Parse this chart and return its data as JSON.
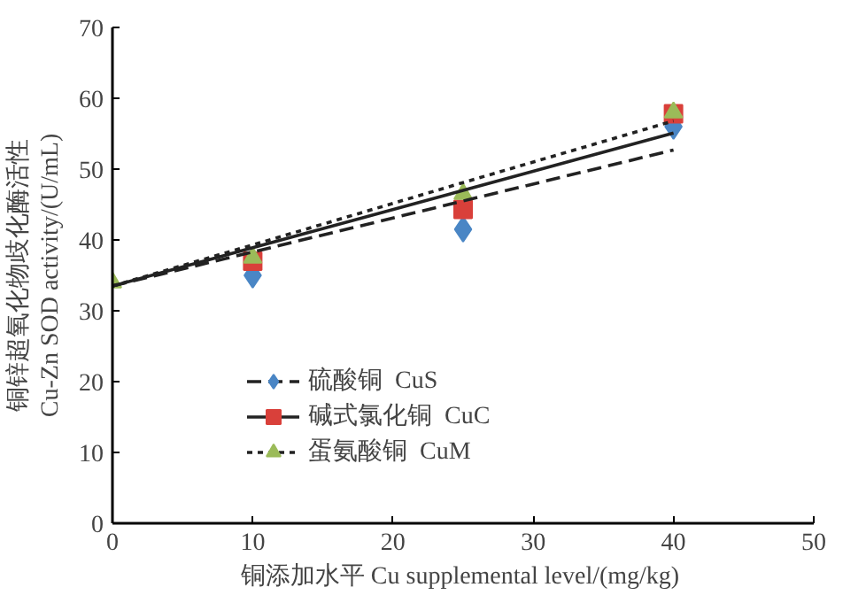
{
  "chart_data": {
    "type": "scatter",
    "xlabel": "铜添加水平  Cu supplemental level/(mg/kg)",
    "ylabel": "铜锌超氧化物歧化酶活性\nCu-Zn SOD activity/(U/mL)",
    "x": [
      0,
      10,
      25,
      40
    ],
    "series": [
      {
        "name": "硫酸铜  CuS",
        "color": "#4a86c5",
        "marker": "diamond",
        "values": [
          null,
          35,
          41.5,
          56
        ]
      },
      {
        "name": "碱式氯化铜  CuC",
        "color": "#d9403a",
        "marker": "square",
        "values": [
          null,
          37,
          44.3,
          57.8
        ]
      },
      {
        "name": "蛋氨酸铜  CuM",
        "color": "#9bbb59",
        "marker": "triangle",
        "values": [
          34,
          37.5,
          46.5,
          58
        ]
      },
      {
        "type": "line",
        "color": "#222222",
        "line_style": "dashed",
        "values": [
          33.5,
          38.3,
          45.5,
          52.7
        ]
      },
      {
        "type": "line",
        "color": "#222222",
        "line_style": "solid",
        "values": [
          33.5,
          38.9,
          47.0,
          55.1
        ]
      },
      {
        "type": "line",
        "color": "#222222",
        "line_style": "dotted",
        "values": [
          33.5,
          39.3,
          48.1,
          56.8
        ]
      }
    ],
    "xlim": [
      0,
      50
    ],
    "xticks": [
      0,
      10,
      20,
      30,
      40,
      50
    ],
    "ylim": [
      0,
      70
    ],
    "yticks": [
      0,
      10,
      20,
      30,
      40,
      50,
      60,
      70
    ],
    "grid": false,
    "legend": "bottom"
  }
}
